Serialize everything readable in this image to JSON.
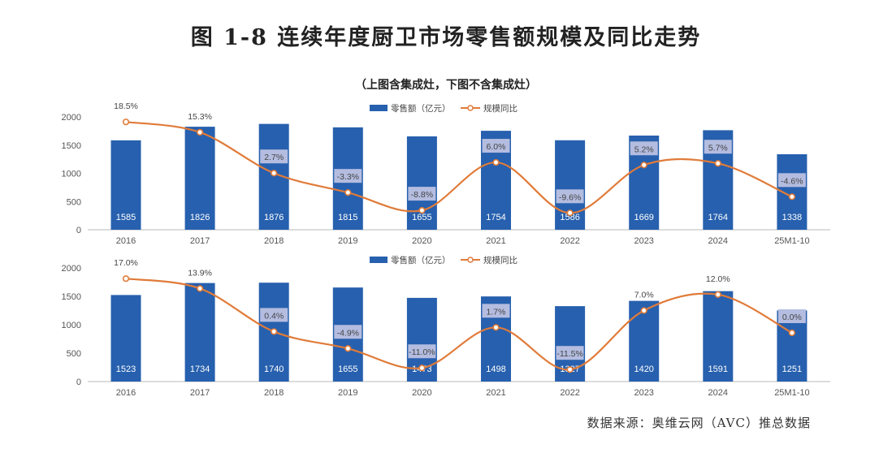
{
  "title": "图 1-8 连续年度厨卫市场零售额规模及同比走势",
  "subtitle": "（上图含集成灶，下图不含集成灶）",
  "source": "数据来源：奥维云网（AVC）推总数据",
  "colors": {
    "bar": "#2760ae",
    "line": "#e07b39",
    "label_box": "#b4bde0"
  },
  "chart_data": [
    {
      "type": "bar+line",
      "categories": [
        "2016",
        "2017",
        "2018",
        "2019",
        "2020",
        "2021",
        "2022",
        "2023",
        "2024",
        "25M1-10"
      ],
      "ylim": [
        0,
        2000
      ],
      "yticks": [
        "0",
        "500",
        "1000",
        "1500",
        "2000"
      ],
      "grid": false,
      "legend": "top-center",
      "series": [
        {
          "name": "零售额（亿元）",
          "type": "bar",
          "axis": "primary",
          "values": [
            1585,
            1826,
            1876,
            1815,
            1655,
            1754,
            1586,
            1669,
            1764,
            1338
          ]
        },
        {
          "name": "规模同比",
          "type": "line",
          "axis": "secondary",
          "smooth": true,
          "values": [
            18.5,
            15.3,
            2.7,
            -3.3,
            -8.8,
            6.0,
            -9.6,
            5.2,
            5.7,
            -4.6
          ]
        }
      ]
    },
    {
      "type": "bar+line",
      "categories": [
        "2016",
        "2017",
        "2018",
        "2019",
        "2020",
        "2021",
        "2022",
        "2023",
        "2024",
        "25M1-10"
      ],
      "ylim": [
        0,
        2000
      ],
      "yticks": [
        "0",
        "500",
        "1000",
        "1500",
        "2000"
      ],
      "grid": false,
      "legend": "top-center",
      "series": [
        {
          "name": "零售额（亿元）",
          "type": "bar",
          "axis": "primary",
          "values": [
            1523,
            1734,
            1740,
            1655,
            1473,
            1498,
            1327,
            1420,
            1591,
            1251
          ]
        },
        {
          "name": "规模同比",
          "type": "line",
          "axis": "secondary",
          "smooth": true,
          "values": [
            17.0,
            13.9,
            0.4,
            -4.9,
            -11.0,
            1.7,
            -11.5,
            7.0,
            12.0,
            0.0
          ]
        }
      ]
    }
  ]
}
